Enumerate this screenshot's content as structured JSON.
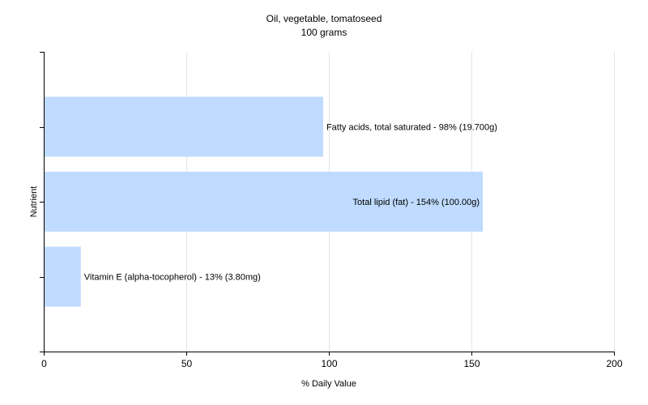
{
  "chart_data": {
    "type": "bar",
    "orientation": "horizontal",
    "title": "Oil, vegetable, tomatoseed",
    "subtitle": "100 grams",
    "xlabel": "% Daily Value",
    "ylabel": "Nutrient",
    "xlim": [
      0,
      200
    ],
    "xticks": [
      0,
      50,
      100,
      150,
      200
    ],
    "grid": "vertical",
    "legend": "none",
    "bar_color": "#bfdbff",
    "categories": [
      "Fatty acids, total saturated",
      "Total lipid (fat)",
      "Vitamin E (alpha-tocopherol)"
    ],
    "values": [
      98,
      154,
      13
    ],
    "data_labels": [
      "Fatty acids, total saturated - 98% (19.700g)",
      "Total lipid (fat) - 154% (100.00g)",
      "Vitamin E (alpha-tocopherol) - 13% (3.80mg)"
    ]
  }
}
